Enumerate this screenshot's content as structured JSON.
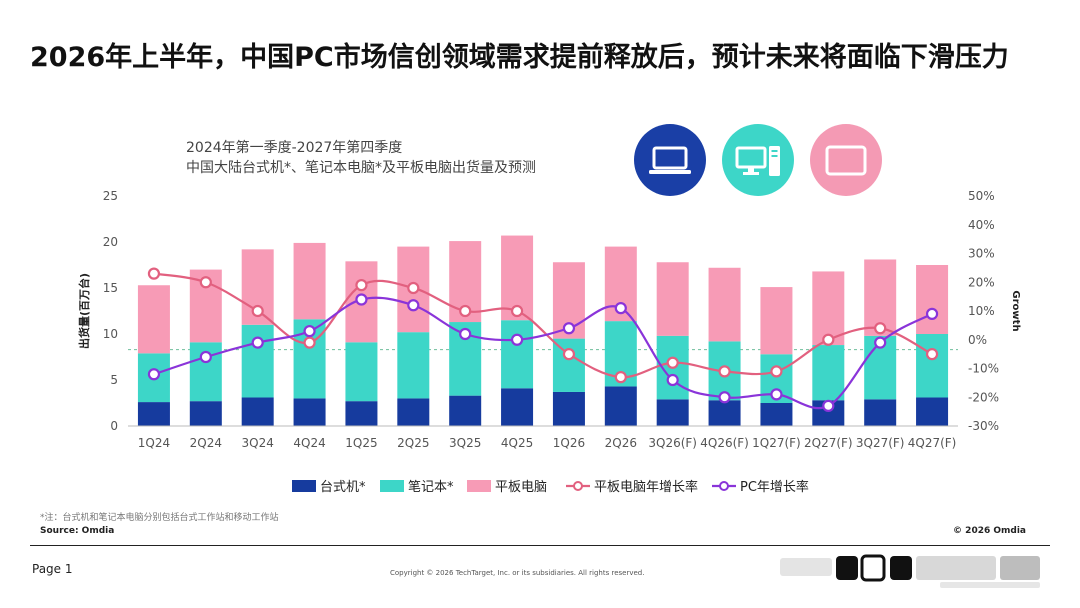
{
  "page": {
    "title": "2026年上半年，中国PC市场信创领域需求提前释放后，预计未来将面临下滑压力",
    "page_number": "Page 1",
    "copyright": "Copyright © 2026 TechTarget, Inc. or its subsidiaries. All rights reserved.",
    "note": "*注：台式机和笔记本电脑分别包括台式工作站和移动工作站",
    "source": "Source: Omdia",
    "copyright_right": "© 2026 Omdia"
  },
  "icons": [
    {
      "name": "laptop-icon",
      "color": "#1a3fa6"
    },
    {
      "name": "desktop-icon",
      "color": "#3dd6c8"
    },
    {
      "name": "tablet-icon",
      "color": "#f49ab4"
    }
  ],
  "chart_data": {
    "type": "bar",
    "stacked": true,
    "title_lines": [
      "2024年第一季度-2027年第四季度",
      "中国大陆台式机*、笔记本电脑*及平板电脑出货量及预测"
    ],
    "categories": [
      "1Q24",
      "2Q24",
      "3Q24",
      "4Q24",
      "1Q25",
      "2Q25",
      "3Q25",
      "4Q25",
      "1Q26",
      "2Q26",
      "3Q26(F)",
      "4Q26(F)",
      "1Q27(F)",
      "2Q27(F)",
      "3Q27(F)",
      "4Q27(F)"
    ],
    "ylabel": "出货量(百万台)",
    "y2label": "Growth",
    "ylim": [
      0,
      25
    ],
    "yticks": [
      0,
      5,
      10,
      15,
      20,
      25
    ],
    "y2lim": [
      -30,
      50
    ],
    "y2ticks": [
      "-30%",
      "-20%",
      "-10%",
      "0%",
      "10%",
      "20%",
      "30%",
      "40%",
      "50%"
    ],
    "series": [
      {
        "name": "台式机*",
        "kind": "bar",
        "color": "#163b9e",
        "values": [
          2.6,
          2.7,
          3.1,
          3.0,
          2.7,
          3.0,
          3.3,
          4.1,
          3.7,
          4.3,
          2.9,
          2.8,
          2.5,
          2.8,
          2.9,
          3.1
        ]
      },
      {
        "name": "笔记本*",
        "kind": "bar",
        "color": "#3dd6c8",
        "values": [
          5.3,
          6.4,
          7.9,
          8.6,
          6.4,
          7.2,
          8.0,
          7.4,
          5.8,
          7.1,
          6.9,
          6.4,
          5.3,
          6.0,
          6.9,
          6.9
        ]
      },
      {
        "name": "平板电脑",
        "kind": "bar",
        "color": "#f79bb6",
        "values": [
          7.4,
          7.9,
          8.2,
          8.3,
          8.8,
          9.3,
          8.8,
          9.2,
          8.3,
          8.1,
          8.0,
          8.0,
          7.3,
          8.0,
          8.3,
          7.5
        ]
      },
      {
        "name": "平板电脑年增长率",
        "kind": "line",
        "color": "#e2607f",
        "values": [
          23,
          20,
          10,
          -1,
          19,
          18,
          10,
          10,
          -5,
          -13,
          -8,
          -11,
          -11,
          0,
          4,
          -5
        ]
      },
      {
        "name": "PC年增长率",
        "kind": "line",
        "color": "#8a34d9",
        "values": [
          -12,
          -6,
          -1,
          3,
          14,
          12,
          2,
          0,
          4,
          11,
          -14,
          -20,
          -19,
          -23,
          -1,
          9
        ]
      }
    ],
    "reference_line": {
      "axis": "y",
      "value": 8.3
    },
    "legend_position": "bottom"
  }
}
